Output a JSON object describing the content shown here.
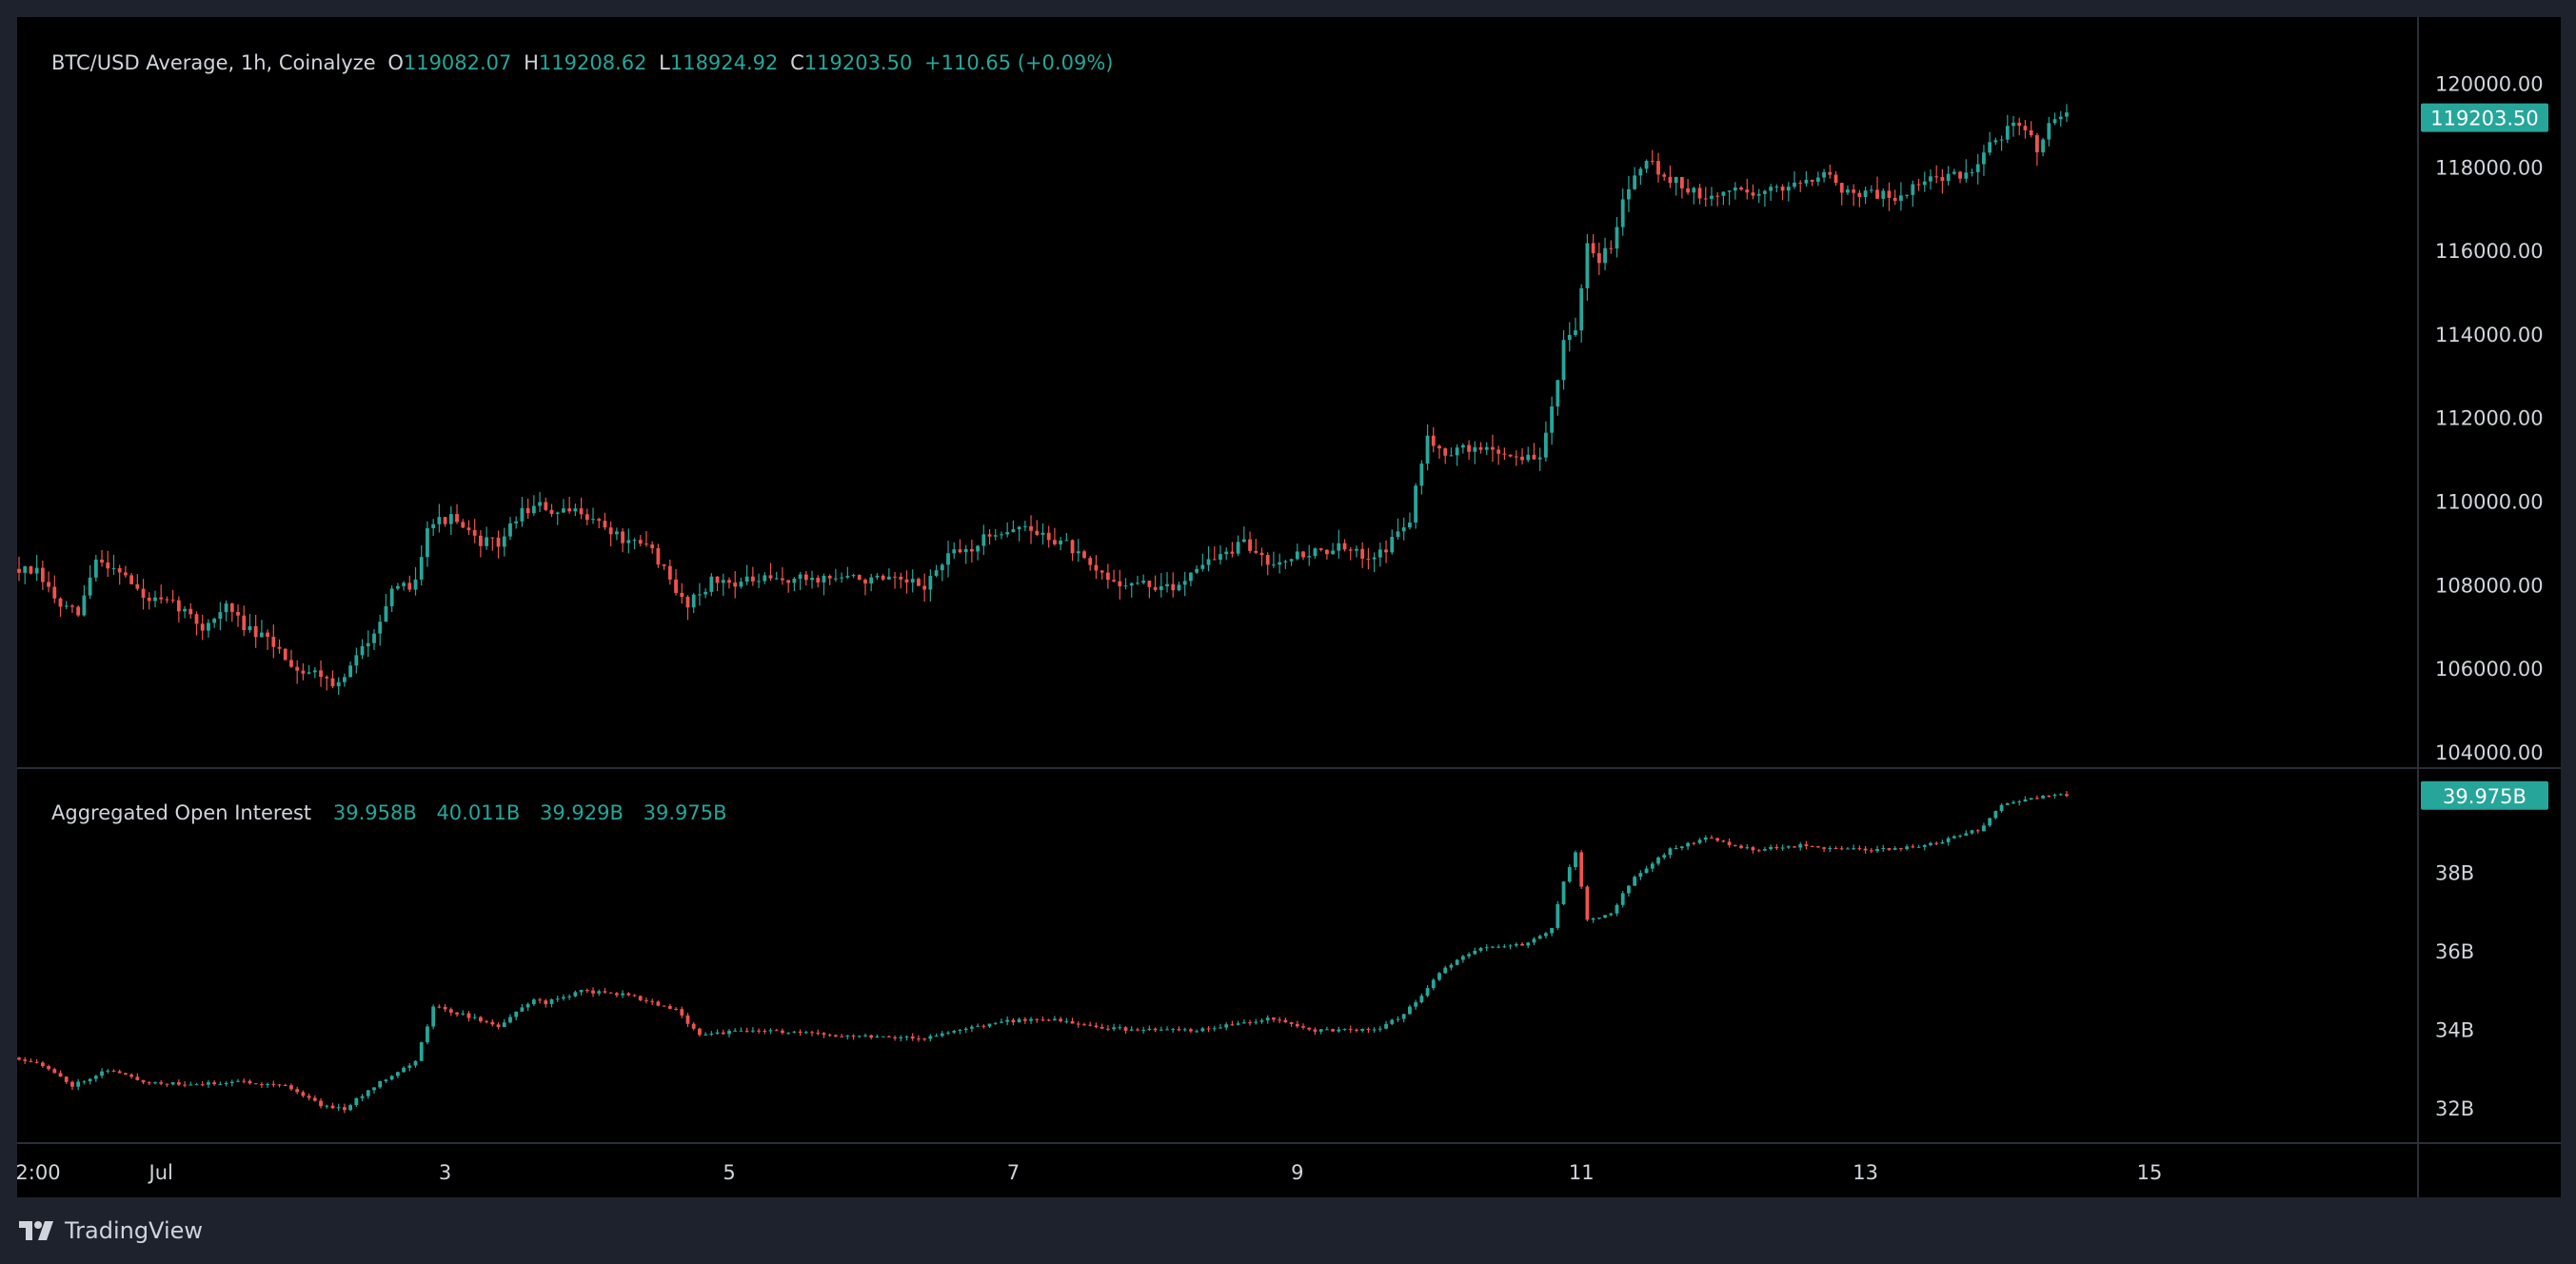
{
  "price_legend": {
    "symbol": "BTC/USD Average, 1h, Coinalyze",
    "o_label": "O",
    "o": "119082.07",
    "h_label": "H",
    "h": "119208.62",
    "l_label": "L",
    "l": "118924.92",
    "c_label": "C",
    "c": "119203.50",
    "change": "+110.65 (+0.09%)"
  },
  "oi_legend": {
    "title": "Aggregated Open Interest",
    "o": "39.958B",
    "h": "40.011B",
    "l": "39.929B",
    "c": "39.975B"
  },
  "footer": {
    "brand": "TradingView"
  },
  "colors": {
    "up": "#26a69a",
    "down": "#ef5350",
    "background": "#000000",
    "chrome": "#1e222d",
    "text": "#d1d4dc"
  },
  "chart_data": [
    {
      "type": "candlestick",
      "title": "BTC/USD Average, 1h, Coinalyze",
      "y_ticks": [
        "104000.00",
        "106000.00",
        "108000.00",
        "110000.00",
        "112000.00",
        "114000.00",
        "116000.00",
        "118000.00",
        "120000.00"
      ],
      "ylim": [
        103700,
        121200
      ],
      "last_price_label": "119203.50",
      "last_price": 119203.5,
      "x_ticks": [
        "2:00",
        "Jul",
        "3",
        "5",
        "7",
        "9",
        "11",
        "13",
        "15"
      ],
      "path": [
        [
          "2025-06-30T00:00",
          108400
        ],
        [
          "2025-06-30T04:00",
          108300
        ],
        [
          "2025-06-30T08:00",
          107500
        ],
        [
          "2025-06-30T11:00",
          107300
        ],
        [
          "2025-06-30T14:00",
          108600
        ],
        [
          "2025-06-30T18:00",
          108400
        ],
        [
          "2025-06-30T22:00",
          107700
        ],
        [
          "2025-07-01T01:00",
          107600
        ],
        [
          "2025-07-01T04:00",
          107500
        ],
        [
          "2025-07-01T08:00",
          107000
        ],
        [
          "2025-07-01T12:00",
          107500
        ],
        [
          "2025-07-01T16:00",
          106900
        ],
        [
          "2025-07-01T20:00",
          106600
        ],
        [
          "2025-07-02T00:00",
          106000
        ],
        [
          "2025-07-02T04:00",
          105900
        ],
        [
          "2025-07-02T07:00",
          105600
        ],
        [
          "2025-07-02T12:00",
          106700
        ],
        [
          "2025-07-02T16:00",
          107800
        ],
        [
          "2025-07-02T20:00",
          108100
        ],
        [
          "2025-07-02T22:00",
          109500
        ],
        [
          "2025-07-03T02:00",
          109600
        ],
        [
          "2025-07-03T06:00",
          109100
        ],
        [
          "2025-07-03T10:00",
          109000
        ],
        [
          "2025-07-03T14:00",
          109800
        ],
        [
          "2025-07-03T17:00",
          109900
        ],
        [
          "2025-07-03T20:00",
          109700
        ],
        [
          "2025-07-04T00:00",
          109800
        ],
        [
          "2025-07-04T04:00",
          109400
        ],
        [
          "2025-07-04T08:00",
          109000
        ],
        [
          "2025-07-04T12:00",
          108900
        ],
        [
          "2025-07-04T16:00",
          107800
        ],
        [
          "2025-07-04T18:00",
          107600
        ],
        [
          "2025-07-04T22:00",
          108100
        ],
        [
          "2025-07-05T04:00",
          108100
        ],
        [
          "2025-07-05T12:00",
          108150
        ],
        [
          "2025-07-05T20:00",
          108200
        ],
        [
          "2025-07-06T04:00",
          108100
        ],
        [
          "2025-07-06T10:00",
          108000
        ],
        [
          "2025-07-06T14:00",
          108700
        ],
        [
          "2025-07-06T18:00",
          108900
        ],
        [
          "2025-07-06T22:00",
          109300
        ],
        [
          "2025-07-07T02:00",
          109400
        ],
        [
          "2025-07-07T06:00",
          109200
        ],
        [
          "2025-07-07T10:00",
          109000
        ],
        [
          "2025-07-07T14:00",
          108400
        ],
        [
          "2025-07-07T18:00",
          108100
        ],
        [
          "2025-07-08T00:00",
          108000
        ],
        [
          "2025-07-08T04:00",
          107900
        ],
        [
          "2025-07-08T08:00",
          108500
        ],
        [
          "2025-07-08T12:00",
          108700
        ],
        [
          "2025-07-08T16:00",
          109000
        ],
        [
          "2025-07-08T20:00",
          108600
        ],
        [
          "2025-07-09T00:00",
          108700
        ],
        [
          "2025-07-09T04:00",
          108800
        ],
        [
          "2025-07-09T08:00",
          108900
        ],
        [
          "2025-07-09T12:00",
          108700
        ],
        [
          "2025-07-09T16:00",
          108900
        ],
        [
          "2025-07-09T20:00",
          109600
        ],
        [
          "2025-07-09T23:00",
          111600
        ],
        [
          "2025-07-10T02:00",
          111200
        ],
        [
          "2025-07-10T08:00",
          111300
        ],
        [
          "2025-07-10T14:00",
          111100
        ],
        [
          "2025-07-10T18:00",
          111000
        ],
        [
          "2025-07-10T20:00",
          112300
        ],
        [
          "2025-07-10T22:00",
          113800
        ],
        [
          "2025-07-11T00:00",
          114000
        ],
        [
          "2025-07-11T02:00",
          116100
        ],
        [
          "2025-07-11T04:00",
          115800
        ],
        [
          "2025-07-11T06:00",
          116200
        ],
        [
          "2025-07-11T08:00",
          117200
        ],
        [
          "2025-07-11T10:00",
          117900
        ],
        [
          "2025-07-11T12:00",
          118300
        ],
        [
          "2025-07-11T14:00",
          117900
        ],
        [
          "2025-07-11T18:00",
          117600
        ],
        [
          "2025-07-11T22:00",
          117200
        ],
        [
          "2025-07-12T02:00",
          117500
        ],
        [
          "2025-07-12T08:00",
          117400
        ],
        [
          "2025-07-12T14:00",
          117700
        ],
        [
          "2025-07-12T18:00",
          117900
        ],
        [
          "2025-07-12T22:00",
          117400
        ],
        [
          "2025-07-13T02:00",
          117400
        ],
        [
          "2025-07-13T06:00",
          117300
        ],
        [
          "2025-07-13T10:00",
          117600
        ],
        [
          "2025-07-13T14:00",
          117800
        ],
        [
          "2025-07-13T18:00",
          117800
        ],
        [
          "2025-07-13T22:00",
          118600
        ],
        [
          "2025-07-14T02:00",
          119000
        ],
        [
          "2025-07-14T04:00",
          118900
        ],
        [
          "2025-07-14T06:00",
          118500
        ],
        [
          "2025-07-14T08:00",
          119100
        ],
        [
          "2025-07-14T10:00",
          119200
        ]
      ]
    },
    {
      "type": "candlestick",
      "title": "Aggregated Open Interest",
      "y_ticks": [
        "32B",
        "34B",
        "36B",
        "38B"
      ],
      "ylim": [
        31.2,
        40.6
      ],
      "last_value_label": "39.975B",
      "last_value": 39.975,
      "path": [
        [
          "2025-06-30T00:00",
          33.3
        ],
        [
          "2025-06-30T04:00",
          33.2
        ],
        [
          "2025-06-30T10:00",
          32.6
        ],
        [
          "2025-06-30T16:00",
          33.0
        ],
        [
          "2025-06-30T22:00",
          32.7
        ],
        [
          "2025-07-01T06:00",
          32.6
        ],
        [
          "2025-07-01T14:00",
          32.7
        ],
        [
          "2025-07-01T22:00",
          32.6
        ],
        [
          "2025-07-02T04:00",
          32.1
        ],
        [
          "2025-07-02T08:00",
          32.0
        ],
        [
          "2025-07-02T14:00",
          32.7
        ],
        [
          "2025-07-02T20:00",
          33.2
        ],
        [
          "2025-07-02T23:00",
          34.6
        ],
        [
          "2025-07-03T04:00",
          34.4
        ],
        [
          "2025-07-03T10:00",
          34.1
        ],
        [
          "2025-07-03T16:00",
          34.8
        ],
        [
          "2025-07-03T18:00",
          34.7
        ],
        [
          "2025-07-04T00:00",
          35.0
        ],
        [
          "2025-07-04T08:00",
          34.9
        ],
        [
          "2025-07-04T16:00",
          34.5
        ],
        [
          "2025-07-04T20:00",
          33.9
        ],
        [
          "2025-07-05T06:00",
          34.0
        ],
        [
          "2025-07-05T16:00",
          33.9
        ],
        [
          "2025-07-06T02:00",
          33.85
        ],
        [
          "2025-07-06T10:00",
          33.8
        ],
        [
          "2025-07-06T16:00",
          34.0
        ],
        [
          "2025-07-06T22:00",
          34.2
        ],
        [
          "2025-07-07T06:00",
          34.3
        ],
        [
          "2025-07-07T14:00",
          34.1
        ],
        [
          "2025-07-07T22:00",
          34.0
        ],
        [
          "2025-07-08T08:00",
          34.0
        ],
        [
          "2025-07-08T16:00",
          34.2
        ],
        [
          "2025-07-08T20:00",
          34.3
        ],
        [
          "2025-07-09T04:00",
          34.0
        ],
        [
          "2025-07-09T14:00",
          34.0
        ],
        [
          "2025-07-09T18:00",
          34.3
        ],
        [
          "2025-07-09T22:00",
          34.9
        ],
        [
          "2025-07-10T02:00",
          35.6
        ],
        [
          "2025-07-10T08:00",
          36.1
        ],
        [
          "2025-07-10T16:00",
          36.2
        ],
        [
          "2025-07-10T20:00",
          36.6
        ],
        [
          "2025-07-10T22:00",
          37.8
        ],
        [
          "2025-07-11T00:00",
          38.5
        ],
        [
          "2025-07-11T02:00",
          36.8
        ],
        [
          "2025-07-11T06:00",
          37.0
        ],
        [
          "2025-07-11T10:00",
          37.9
        ],
        [
          "2025-07-11T16:00",
          38.6
        ],
        [
          "2025-07-11T22:00",
          38.9
        ],
        [
          "2025-07-12T06:00",
          38.6
        ],
        [
          "2025-07-12T14:00",
          38.7
        ],
        [
          "2025-07-12T22:00",
          38.6
        ],
        [
          "2025-07-13T06:00",
          38.6
        ],
        [
          "2025-07-13T14:00",
          38.8
        ],
        [
          "2025-07-13T20:00",
          39.1
        ],
        [
          "2025-07-14T00:00",
          39.7
        ],
        [
          "2025-07-14T04:00",
          39.9
        ],
        [
          "2025-07-14T10:00",
          39.975
        ]
      ]
    }
  ]
}
